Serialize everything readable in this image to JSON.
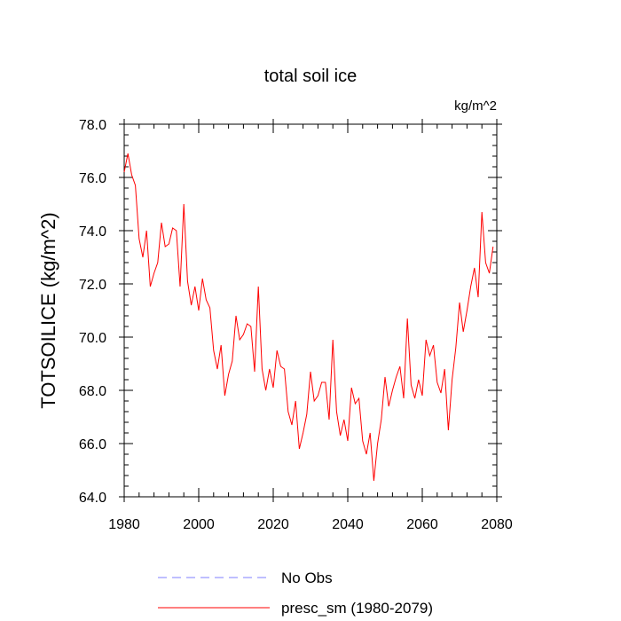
{
  "chart_data": {
    "type": "line",
    "title": "total soil ice",
    "units": "kg/m^2",
    "ylabel": "TOTSOILICE  (kg/m^2)",
    "xlabel": "",
    "xlim": [
      1980,
      2080
    ],
    "ylim": [
      64.0,
      78.0
    ],
    "x_ticks": [
      1980,
      2000,
      2020,
      2040,
      2060,
      2080
    ],
    "x_tick_labels": [
      "1980",
      "2000",
      "2020",
      "2040",
      "2060",
      "2080"
    ],
    "y_ticks": [
      64,
      66,
      68,
      70,
      72,
      74,
      76,
      78
    ],
    "y_tick_labels": [
      "64.0",
      "66.0",
      "68.0",
      "70.0",
      "72.0",
      "74.0",
      "76.0",
      "78.0"
    ],
    "grid": false,
    "legend_position": "bottom",
    "legend": [
      {
        "label": "No Obs",
        "color": "#7f7fff",
        "style": "dashed"
      },
      {
        "label": "presc_sm (1980-2079)",
        "color": "#ff0000",
        "style": "solid"
      }
    ],
    "series": [
      {
        "name": "presc_sm (1980-2079)",
        "color": "#ff0000",
        "x_start": 1980,
        "x_step": 1,
        "values": [
          76.2,
          76.9,
          76.1,
          75.7,
          73.7,
          73.0,
          74.0,
          71.9,
          72.4,
          72.8,
          74.3,
          73.4,
          73.5,
          74.1,
          74.0,
          71.9,
          75.0,
          72.1,
          71.2,
          71.9,
          71.0,
          72.2,
          71.4,
          71.1,
          69.5,
          68.8,
          69.7,
          67.8,
          68.6,
          69.1,
          70.8,
          69.9,
          70.1,
          70.5,
          70.4,
          68.7,
          71.9,
          68.8,
          68.0,
          68.8,
          68.1,
          69.5,
          68.9,
          68.8,
          67.2,
          66.7,
          67.6,
          65.8,
          66.4,
          67.1,
          68.7,
          67.6,
          67.8,
          68.3,
          68.3,
          66.9,
          69.9,
          67.2,
          66.3,
          66.9,
          66.1,
          68.1,
          67.5,
          67.7,
          66.1,
          65.6,
          66.4,
          64.6,
          66.0,
          66.9,
          68.5,
          67.4,
          68.0,
          68.5,
          68.9,
          67.7,
          70.7,
          68.2,
          67.7,
          68.4,
          67.8,
          69.9,
          69.3,
          69.7,
          68.3,
          67.9,
          68.8,
          66.5,
          68.4,
          69.6,
          71.3,
          70.2,
          71.0,
          71.9,
          72.6,
          71.5,
          74.7,
          72.8,
          72.4,
          73.4
        ]
      }
    ]
  }
}
